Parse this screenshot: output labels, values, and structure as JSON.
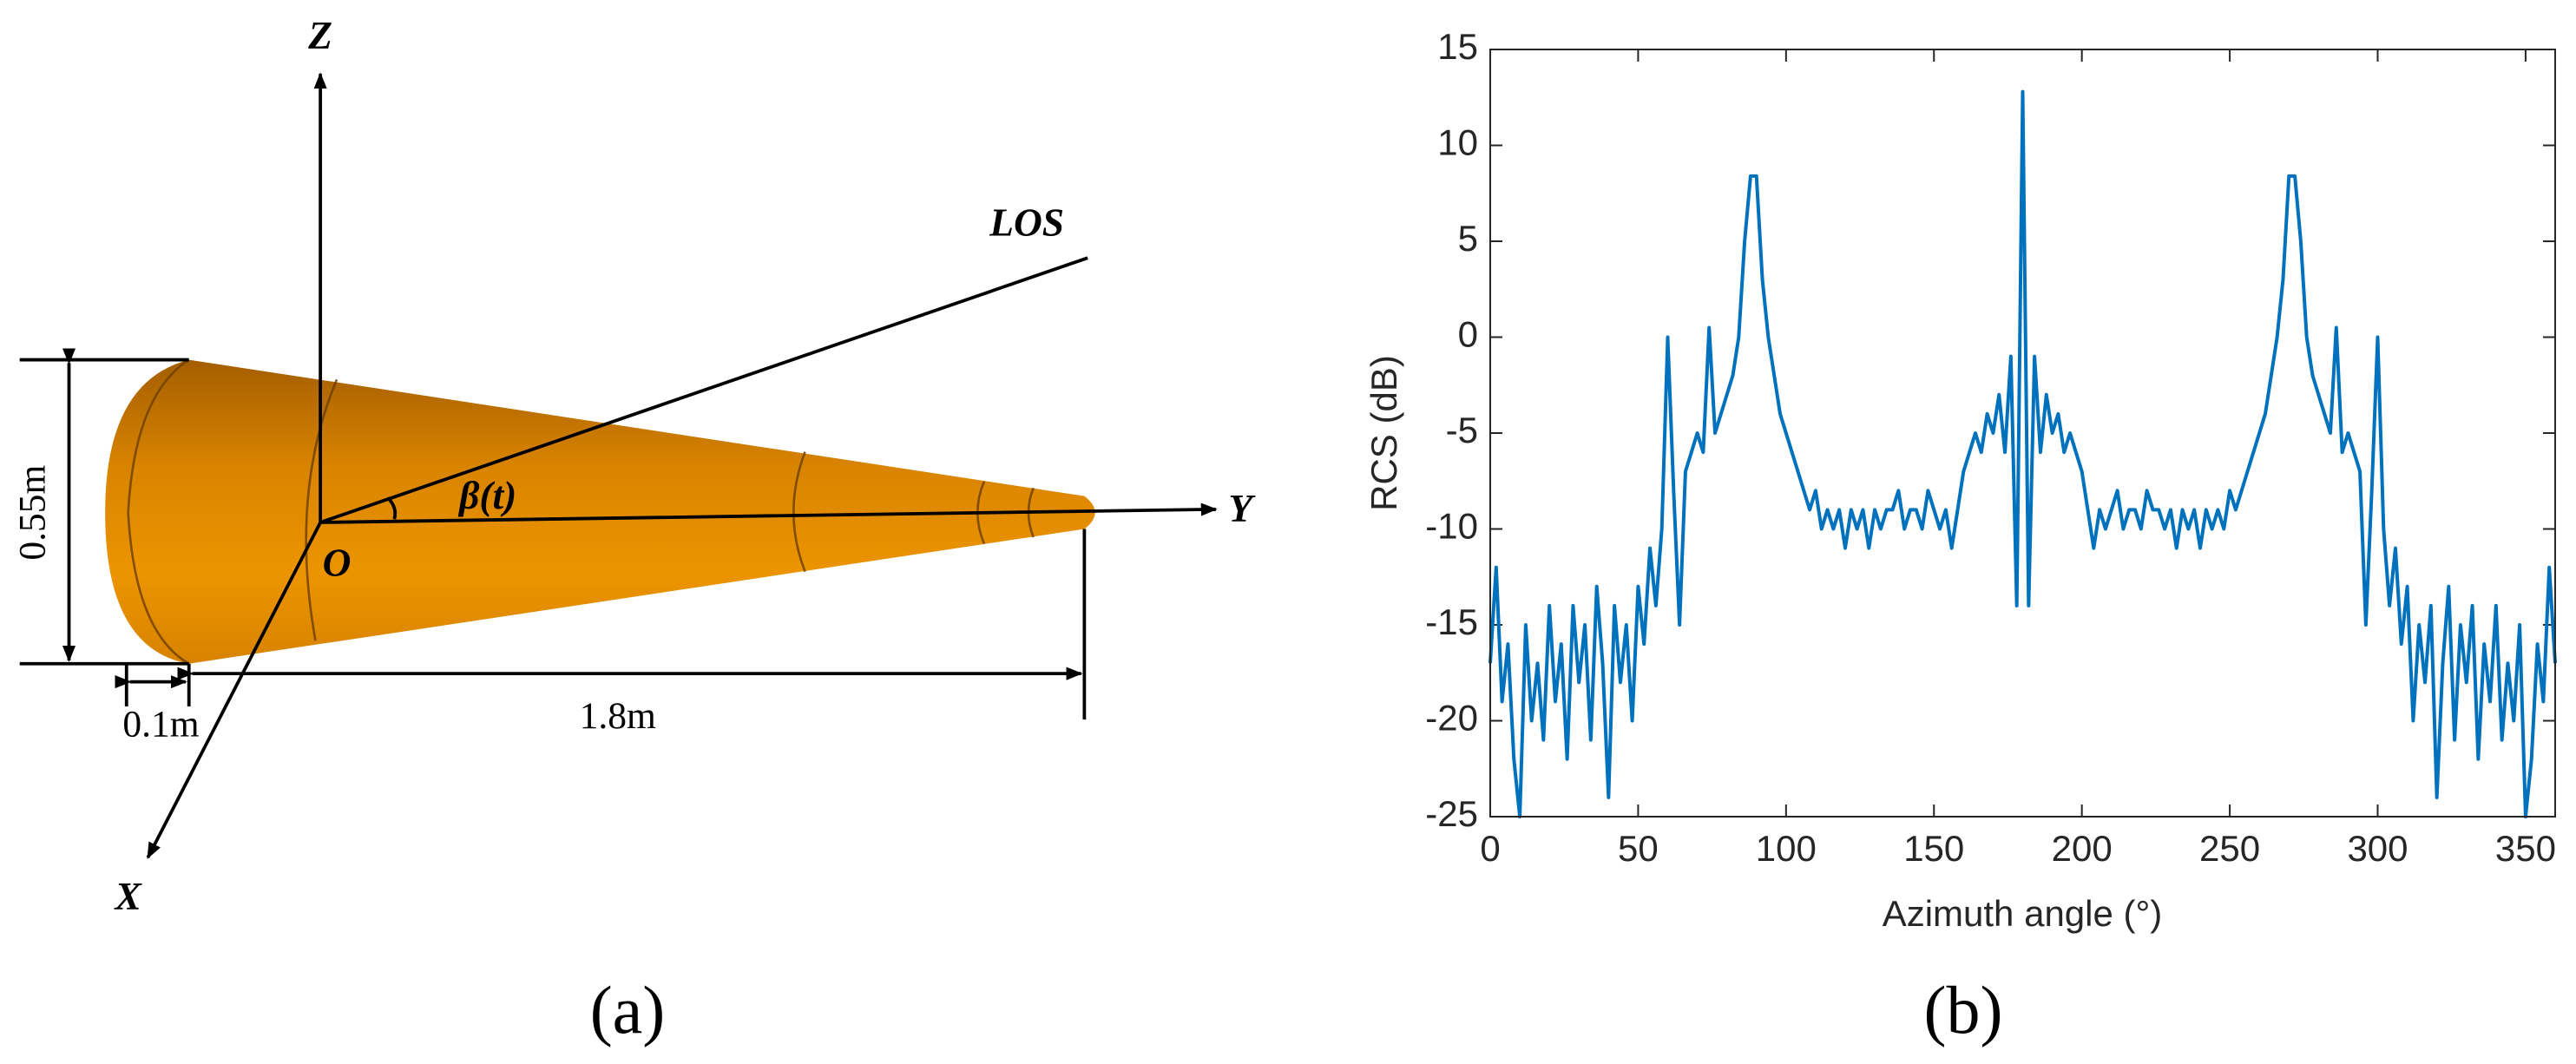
{
  "diagram": {
    "labels": {
      "z": "Z",
      "y": "Y",
      "x": "X",
      "los": "LOS",
      "origin": "O",
      "angle": "β(t)",
      "height": "0.55m",
      "cap": "0.1m",
      "length": "1.8m"
    },
    "panel_label": "(a)"
  },
  "chart_data": {
    "type": "line",
    "panel_label": "(b)",
    "xlabel": "Azimuth angle (°)",
    "ylabel": "RCS (dB)",
    "color": "#0072bd",
    "xlim": [
      0,
      360
    ],
    "ylim": [
      -25,
      15
    ],
    "xticks": [
      0,
      50,
      100,
      150,
      200,
      250,
      300,
      350
    ],
    "yticks": [
      -25,
      -20,
      -15,
      -10,
      -5,
      0,
      5,
      10,
      15
    ],
    "x": [
      0,
      2,
      4,
      6,
      8,
      10,
      12,
      14,
      16,
      18,
      20,
      22,
      24,
      26,
      28,
      30,
      32,
      34,
      36,
      38,
      40,
      42,
      44,
      46,
      48,
      50,
      52,
      54,
      56,
      58,
      60,
      62,
      64,
      66,
      68,
      70,
      72,
      74,
      76,
      78,
      80,
      82,
      84,
      86,
      88,
      90,
      92,
      94,
      96,
      98,
      100,
      102,
      104,
      106,
      108,
      110,
      112,
      114,
      116,
      118,
      120,
      122,
      124,
      126,
      128,
      130,
      132,
      134,
      136,
      138,
      140,
      142,
      144,
      146,
      148,
      150,
      152,
      154,
      156,
      158,
      160,
      162,
      164,
      166,
      168,
      170,
      172,
      174,
      176,
      178,
      180,
      182,
      184,
      186,
      188,
      190,
      192,
      194,
      196,
      198,
      200,
      202,
      204,
      206,
      208,
      210,
      212,
      214,
      216,
      218,
      220,
      222,
      224,
      226,
      228,
      230,
      232,
      234,
      236,
      238,
      240,
      242,
      244,
      246,
      248,
      250,
      252,
      254,
      256,
      258,
      260,
      262,
      264,
      266,
      268,
      270,
      272,
      274,
      276,
      278,
      280,
      282,
      284,
      286,
      288,
      290,
      292,
      294,
      296,
      298,
      300,
      302,
      304,
      306,
      308,
      310,
      312,
      314,
      316,
      318,
      320,
      322,
      324,
      326,
      328,
      330,
      332,
      334,
      336,
      338,
      340,
      342,
      344,
      346,
      348,
      350,
      352,
      354,
      356,
      358,
      360
    ],
    "values": [
      -17,
      -12,
      -19,
      -16,
      -22,
      -25,
      -15,
      -20,
      -17,
      -21,
      -14,
      -19,
      -16,
      -22,
      -14,
      -18,
      -15,
      -21,
      -13,
      -17,
      -24,
      -14,
      -18,
      -15,
      -20,
      -13,
      -16,
      -11,
      -14,
      -10,
      0,
      -8,
      -15,
      -7,
      -6,
      -5,
      -6,
      0.5,
      -5,
      -4,
      -3,
      -2,
      0,
      5,
      8.4,
      8.4,
      3,
      0,
      -2,
      -4,
      -5,
      -6,
      -7,
      -8,
      -9,
      -8,
      -10,
      -9,
      -10,
      -9,
      -11,
      -9,
      -10,
      -9,
      -11,
      -9,
      -10,
      -9,
      -9,
      -8,
      -10,
      -9,
      -9,
      -10,
      -8,
      -9,
      -10,
      -9,
      -11,
      -9,
      -7,
      -6,
      -5,
      -6,
      -4,
      -5,
      -3,
      -6,
      -1,
      -14,
      12.8,
      -14,
      -1,
      -6,
      -3,
      -5,
      -4,
      -6,
      -5,
      -6,
      -7,
      -9,
      -11,
      -9,
      -10,
      -9,
      -8,
      -10,
      -9,
      -9,
      -10,
      -8,
      -9,
      -9,
      -10,
      -9,
      -11,
      -9,
      -10,
      -9,
      -11,
      -9,
      -10,
      -9,
      -10,
      -8,
      -9,
      -8,
      -7,
      -6,
      -5,
      -4,
      -2,
      0,
      3,
      8.4,
      8.4,
      5,
      0,
      -2,
      -3,
      -4,
      -5,
      0.5,
      -6,
      -5,
      -6,
      -7,
      -15,
      -8,
      0,
      -10,
      -14,
      -11,
      -16,
      -13,
      -20,
      -15,
      -18,
      -14,
      -24,
      -17,
      -13,
      -21,
      -15,
      -18,
      -14,
      -22,
      -16,
      -19,
      -14,
      -21,
      -17,
      -20,
      -15,
      -25,
      -22,
      -16,
      -19,
      -12,
      -17
    ]
  }
}
